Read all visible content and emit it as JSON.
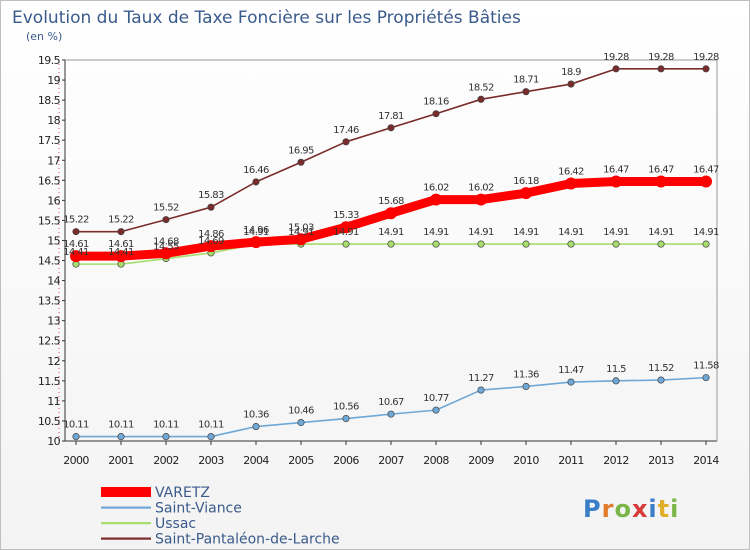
{
  "chart_data": {
    "type": "line",
    "title": "Evolution du Taux de Taxe Foncière sur les Propriétés Bâties",
    "subtitle": "(en %)",
    "x": [
      "2000",
      "2001",
      "2002",
      "2003",
      "2004",
      "2005",
      "2006",
      "2007",
      "2008",
      "2009",
      "2010",
      "2011",
      "2012",
      "2013",
      "2014"
    ],
    "ylim": [
      10,
      19.5
    ],
    "yticks": [
      "10",
      "10.5",
      "11",
      "11.5",
      "12",
      "12.5",
      "13",
      "13.5",
      "14",
      "14.5",
      "15",
      "15.5",
      "16",
      "16.5",
      "17",
      "17.5",
      "18",
      "18.5",
      "19",
      "19.5"
    ],
    "grid": false,
    "legend": "bottom-left",
    "series": [
      {
        "name": "VARETZ",
        "color": "#ff0000",
        "values": [
          14.61,
          14.61,
          14.68,
          14.86,
          14.96,
          15.03,
          15.33,
          15.68,
          16.02,
          16.02,
          16.18,
          16.42,
          16.47,
          16.47,
          16.47
        ],
        "labels": [
          "14.61",
          "14.61",
          "14.68",
          "14.86",
          "14.96",
          "15.03",
          "15.33",
          "15.68",
          "16.02",
          "16.02",
          "16.18",
          "16.42",
          "16.47",
          "16.47",
          "16.47"
        ]
      },
      {
        "name": "Saint-Viance",
        "color": "#6fa8d6",
        "values": [
          10.11,
          10.11,
          10.11,
          10.11,
          10.36,
          10.46,
          10.56,
          10.67,
          10.77,
          11.27,
          11.36,
          11.47,
          11.5,
          11.52,
          11.58
        ],
        "labels": [
          "10.11",
          "10.11",
          "10.11",
          "10.11",
          "10.36",
          "10.46",
          "10.56",
          "10.67",
          "10.77",
          "11.27",
          "11.36",
          "11.47",
          "11.5",
          "11.52",
          "11.58"
        ]
      },
      {
        "name": "Ussac",
        "color": "#a6dd6c",
        "values": [
          14.41,
          14.41,
          14.55,
          14.69,
          14.91,
          14.91,
          14.91,
          14.91,
          14.91,
          14.91,
          14.91,
          14.91,
          14.91,
          14.91,
          14.91
        ],
        "labels": [
          "14.41",
          "14.41",
          "14.55",
          "14.69",
          "14.91",
          "14.91",
          "14.91",
          "14.91",
          "14.91",
          "14.91",
          "14.91",
          "14.91",
          "14.91",
          "14.91",
          "14.91"
        ]
      },
      {
        "name": "Saint-Pantaléon-de-Larche",
        "color": "#7a2c2c",
        "values": [
          15.22,
          15.22,
          15.52,
          15.83,
          16.46,
          16.95,
          17.46,
          17.81,
          18.16,
          18.52,
          18.71,
          18.9,
          19.28,
          19.28,
          19.28
        ],
        "labels": [
          "15.22",
          "15.22",
          "15.52",
          "15.83",
          "16.46",
          "16.95",
          "17.46",
          "17.81",
          "18.16",
          "18.52",
          "18.71",
          "18.9",
          "19.28",
          "19.28",
          "19.28"
        ]
      }
    ]
  },
  "logo": {
    "text": "Proxiti",
    "colors": [
      "#3a7ec8",
      "#e07b2a",
      "#7ab648",
      "#d83a3a",
      "#3a7ec8",
      "#e0b02a",
      "#7ab648"
    ]
  }
}
